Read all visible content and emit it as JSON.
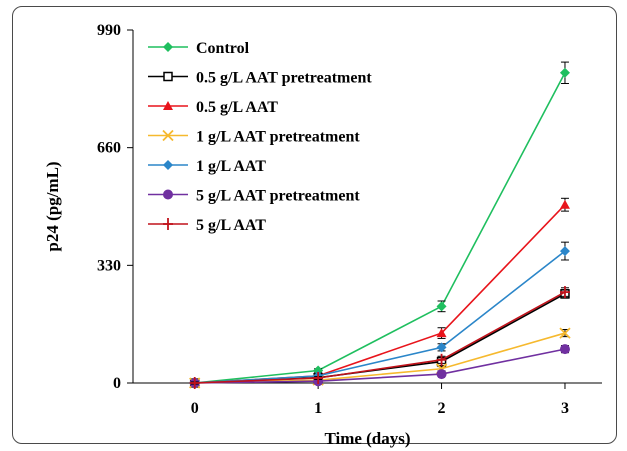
{
  "chart_data": {
    "type": "line",
    "xlabel": "Time (days)",
    "ylabel": "p24 (pg/mL)",
    "x": [
      0,
      1,
      2,
      3
    ],
    "xlim": [
      -0.5,
      3.3
    ],
    "ylim": [
      0,
      990
    ],
    "yticks": [
      0,
      330,
      660,
      990
    ],
    "xticks": [
      0,
      1,
      2,
      3
    ],
    "grid": false,
    "legend_position": "top-left",
    "series": [
      {
        "name": "Control",
        "color": "#1fbf5f",
        "marker": "diamond",
        "values": [
          0,
          35,
          215,
          870
        ],
        "errors": [
          3,
          5,
          15,
          30
        ]
      },
      {
        "name": "0.5 g/L AAT pretreatment",
        "color": "#000000",
        "marker": "open-square",
        "values": [
          0,
          15,
          60,
          250
        ],
        "errors": [
          3,
          4,
          10,
          12
        ]
      },
      {
        "name": "0.5 g/L AAT",
        "color": "#e8141b",
        "marker": "triangle",
        "values": [
          0,
          20,
          140,
          500
        ],
        "errors": [
          3,
          5,
          15,
          18
        ]
      },
      {
        "name": "1 g/L AAT pretreatment",
        "color": "#f6b92e",
        "marker": "x",
        "values": [
          0,
          8,
          40,
          140
        ],
        "errors": [
          2,
          3,
          6,
          10
        ]
      },
      {
        "name": "1 g/L AAT",
        "color": "#2b86c9",
        "marker": "diamond",
        "values": [
          0,
          20,
          100,
          370
        ],
        "errors": [
          3,
          4,
          10,
          25
        ]
      },
      {
        "name": "5 g/L AAT pretreatment",
        "color": "#7030a0",
        "marker": "circle",
        "values": [
          0,
          5,
          25,
          95
        ],
        "errors": [
          2,
          3,
          5,
          10
        ]
      },
      {
        "name": "5 g/L AAT",
        "color": "#c0121b",
        "marker": "plus",
        "values": [
          0,
          14,
          65,
          255
        ],
        "errors": [
          3,
          4,
          10,
          12
        ]
      }
    ]
  }
}
